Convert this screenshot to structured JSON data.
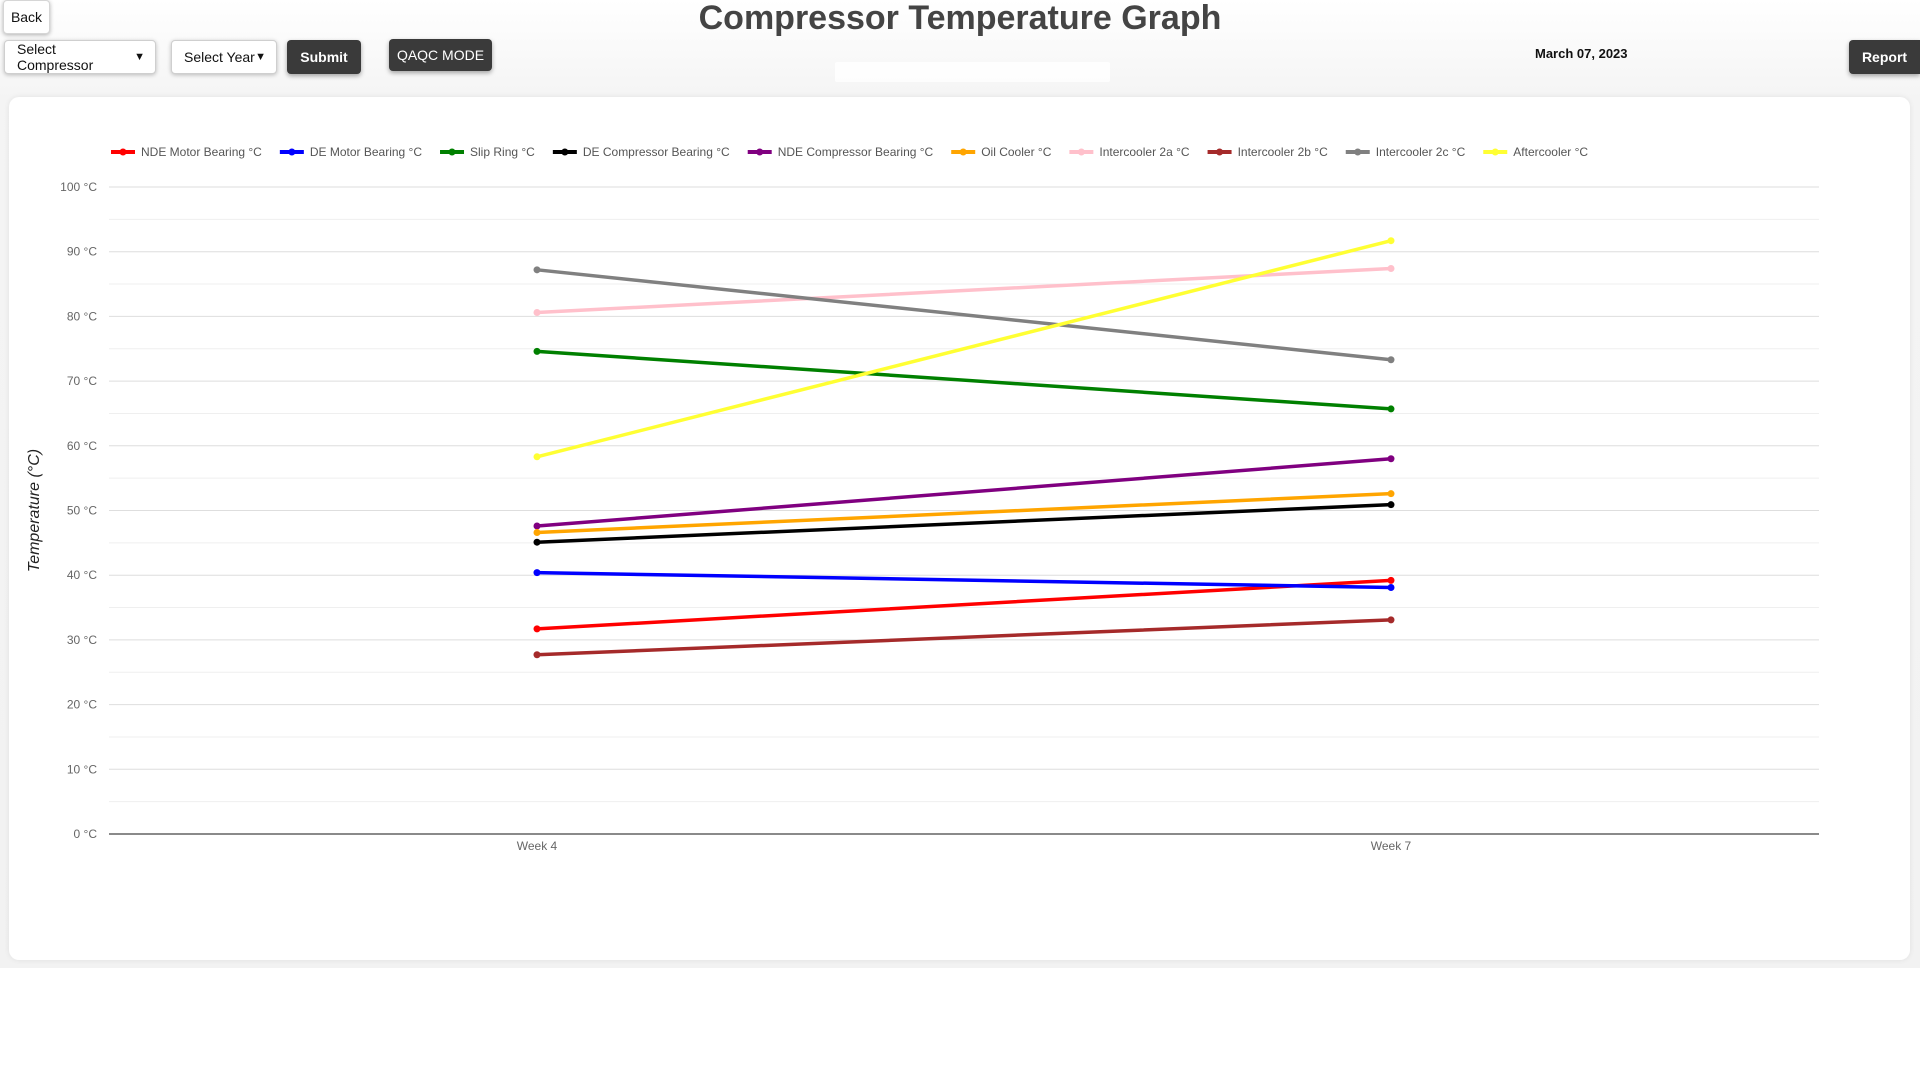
{
  "header": {
    "back_label": "Back",
    "title": "Compressor Temperature Graph",
    "compressor_select": "Select Compressor",
    "year_select": "Select Year",
    "submit_label": "Submit",
    "qaqc_label": "QAQC MODE",
    "date": "March 07, 2023",
    "report_label": "Report"
  },
  "chart_data": {
    "type": "line",
    "title": "",
    "xlabel": "",
    "ylabel": "Temperature (°C)",
    "categories": [
      "Week 4",
      "Week 7"
    ],
    "ylim": [
      0,
      100
    ],
    "yticks": [
      "0 °C",
      "10 °C",
      "20 °C",
      "30 °C",
      "40 °C",
      "50 °C",
      "60 °C",
      "70 °C",
      "80 °C",
      "90 °C",
      "100 °C"
    ],
    "grid": true,
    "legend": "top",
    "series": [
      {
        "name": "NDE Motor Bearing °C",
        "color": "#ff0000",
        "values": [
          31.7,
          39.2
        ]
      },
      {
        "name": "DE Motor Bearing °C",
        "color": "#0000ff",
        "values": [
          40.4,
          38.1
        ]
      },
      {
        "name": "Slip Ring °C",
        "color": "#008000",
        "values": [
          74.6,
          65.7
        ]
      },
      {
        "name": "DE Compressor Bearing °C",
        "color": "#000000",
        "values": [
          45.1,
          50.9
        ]
      },
      {
        "name": "NDE Compressor Bearing °C",
        "color": "#800080",
        "values": [
          47.6,
          58.0
        ]
      },
      {
        "name": "Oil Cooler °C",
        "color": "#ffa500",
        "values": [
          46.6,
          52.6
        ]
      },
      {
        "name": "Intercooler 2a °C",
        "color": "#ffc0cb",
        "values": [
          80.6,
          87.4
        ]
      },
      {
        "name": "Intercooler 2b °C",
        "color": "#a52a2a",
        "values": [
          27.7,
          33.1
        ]
      },
      {
        "name": "Intercooler 2c °C",
        "color": "#808080",
        "values": [
          87.2,
          73.3
        ]
      },
      {
        "name": "Aftercooler °C",
        "color": "#ffff33",
        "values": [
          58.3,
          91.7
        ]
      }
    ]
  }
}
